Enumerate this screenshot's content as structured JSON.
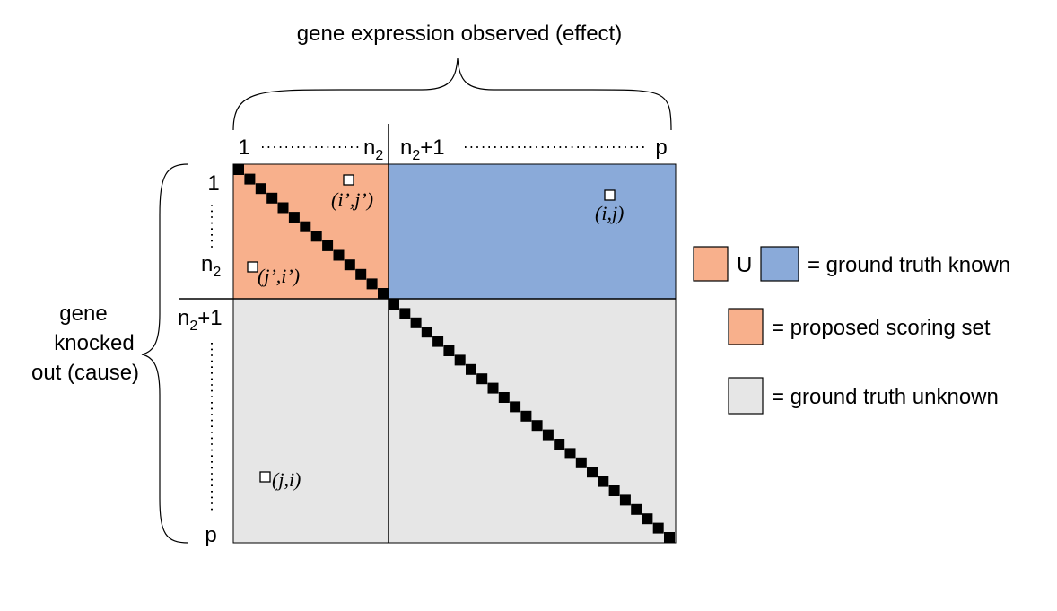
{
  "top_label": "gene expression observed (effect)",
  "side_label": {
    "line1": "gene",
    "line2": "knocked",
    "line3": "out (cause)"
  },
  "col_labels": {
    "start": "1",
    "n2": "n",
    "n2_sub": "2",
    "n2p1": "n",
    "n2p1_sub": "2",
    "n2p1_suffix": "+1",
    "end": "p"
  },
  "row_labels": {
    "start": "1",
    "n2": "n",
    "n2_sub": "2",
    "n2p1": "n",
    "n2p1_sub": "2",
    "n2p1_suffix": "+1",
    "end": "p"
  },
  "cell_labels": {
    "ipjp": "(i’,j’)",
    "jpip": "(j’,i’)",
    "ij": "(i,j)",
    "ji": "(j,i)"
  },
  "legend": {
    "union": "U",
    "known": "= ground truth known",
    "scoring": "= proposed scoring set",
    "unknown": "= ground truth unknown"
  },
  "colors": {
    "orange": "#F8B08C",
    "blue": "#8AAAD9",
    "gray": "#E6E6E6",
    "diag": "#000000"
  }
}
